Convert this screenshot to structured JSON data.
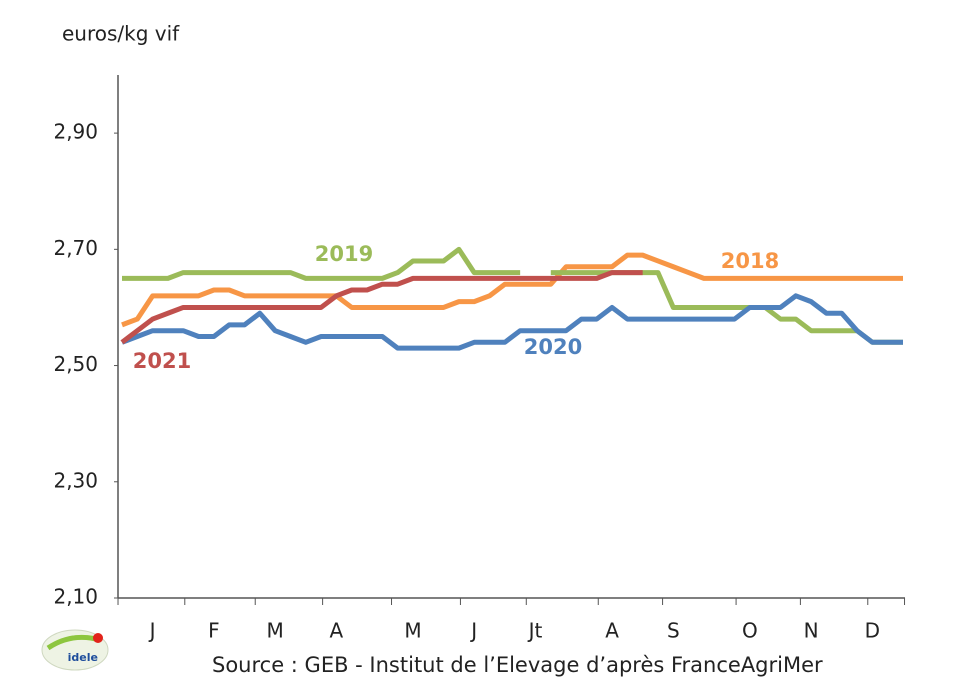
{
  "chart_data": {
    "type": "line",
    "y_axis_label": "euros/kg vif",
    "source": "Source : GEB - Institut de l’Elevage d’après FranceAgriMer",
    "logo_text": "idele",
    "categories": [
      null,
      null,
      "J",
      null,
      null,
      null,
      "F",
      null,
      null,
      null,
      "M",
      null,
      null,
      null,
      "A",
      null,
      null,
      null,
      null,
      "M",
      null,
      null,
      null,
      "J",
      null,
      null,
      null,
      "Jt",
      null,
      null,
      null,
      null,
      "A",
      null,
      null,
      null,
      "S",
      null,
      null,
      null,
      null,
      "O",
      null,
      null,
      null,
      "N",
      null,
      null,
      null,
      "D",
      null,
      null
    ],
    "ylim": [
      2.1,
      3.0
    ],
    "yticks": [
      {
        "value": 2.1,
        "label": "2,10"
      },
      {
        "value": 2.3,
        "label": "2,30"
      },
      {
        "value": 2.5,
        "label": "2,50"
      },
      {
        "value": 2.7,
        "label": "2,70"
      },
      {
        "value": 2.9,
        "label": "2,90"
      }
    ],
    "series": [
      {
        "name": "2018",
        "color": "#f79646",
        "values": [
          2.57,
          2.58,
          2.62,
          2.62,
          2.62,
          2.62,
          2.63,
          2.63,
          2.62,
          2.62,
          2.62,
          2.62,
          2.62,
          2.62,
          2.62,
          2.6,
          2.6,
          2.6,
          2.6,
          2.6,
          2.6,
          2.6,
          2.61,
          2.61,
          2.62,
          2.64,
          2.64,
          2.64,
          2.64,
          2.67,
          2.67,
          2.67,
          2.67,
          2.69,
          2.69,
          2.68,
          2.67,
          2.66,
          2.65,
          2.65,
          2.65,
          2.65,
          2.65,
          2.65,
          2.65,
          2.65,
          2.65,
          2.65,
          2.65,
          2.65,
          2.65,
          2.65
        ]
      },
      {
        "name": "2019",
        "color": "#9bbb59",
        "values": [
          2.65,
          2.65,
          2.65,
          2.65,
          2.66,
          2.66,
          2.66,
          2.66,
          2.66,
          2.66,
          2.66,
          2.66,
          2.65,
          2.65,
          2.65,
          2.65,
          2.65,
          2.65,
          2.66,
          2.68,
          2.68,
          2.68,
          2.7,
          2.66,
          2.66,
          2.66,
          2.66,
          null,
          2.66,
          2.66,
          2.66,
          2.66,
          2.66,
          2.66,
          2.66,
          2.66,
          2.6,
          2.6,
          2.6,
          2.6,
          2.6,
          2.6,
          2.6,
          2.58,
          2.58,
          2.56,
          2.56,
          2.56,
          2.56,
          2.54,
          2.54,
          2.54
        ]
      },
      {
        "name": "2020",
        "color": "#4f81bd",
        "values": [
          2.54,
          2.55,
          2.56,
          2.56,
          2.56,
          2.55,
          2.55,
          2.57,
          2.57,
          2.59,
          2.56,
          2.55,
          2.54,
          2.55,
          2.55,
          2.55,
          2.55,
          2.55,
          2.53,
          2.53,
          2.53,
          2.53,
          2.53,
          2.54,
          2.54,
          2.54,
          2.56,
          2.56,
          2.56,
          2.56,
          2.58,
          2.58,
          2.6,
          2.58,
          2.58,
          2.58,
          2.58,
          2.58,
          2.58,
          2.58,
          2.58,
          2.6,
          2.6,
          2.6,
          2.62,
          2.61,
          2.59,
          2.59,
          2.56,
          2.54,
          2.54,
          2.54
        ]
      },
      {
        "name": "2021",
        "color": "#c0504d",
        "values": [
          2.54,
          2.56,
          2.58,
          2.59,
          2.6,
          2.6,
          2.6,
          2.6,
          2.6,
          2.6,
          2.6,
          2.6,
          2.6,
          2.6,
          2.62,
          2.63,
          2.63,
          2.64,
          2.64,
          2.65,
          2.65,
          2.65,
          2.65,
          2.65,
          2.65,
          2.65,
          2.65,
          2.65,
          2.65,
          2.65,
          2.65,
          2.65,
          2.66,
          2.66,
          2.66,
          null,
          null,
          null,
          null,
          null,
          null,
          null,
          null,
          null,
          null,
          null,
          null,
          null,
          null,
          null,
          null,
          null
        ]
      }
    ]
  }
}
